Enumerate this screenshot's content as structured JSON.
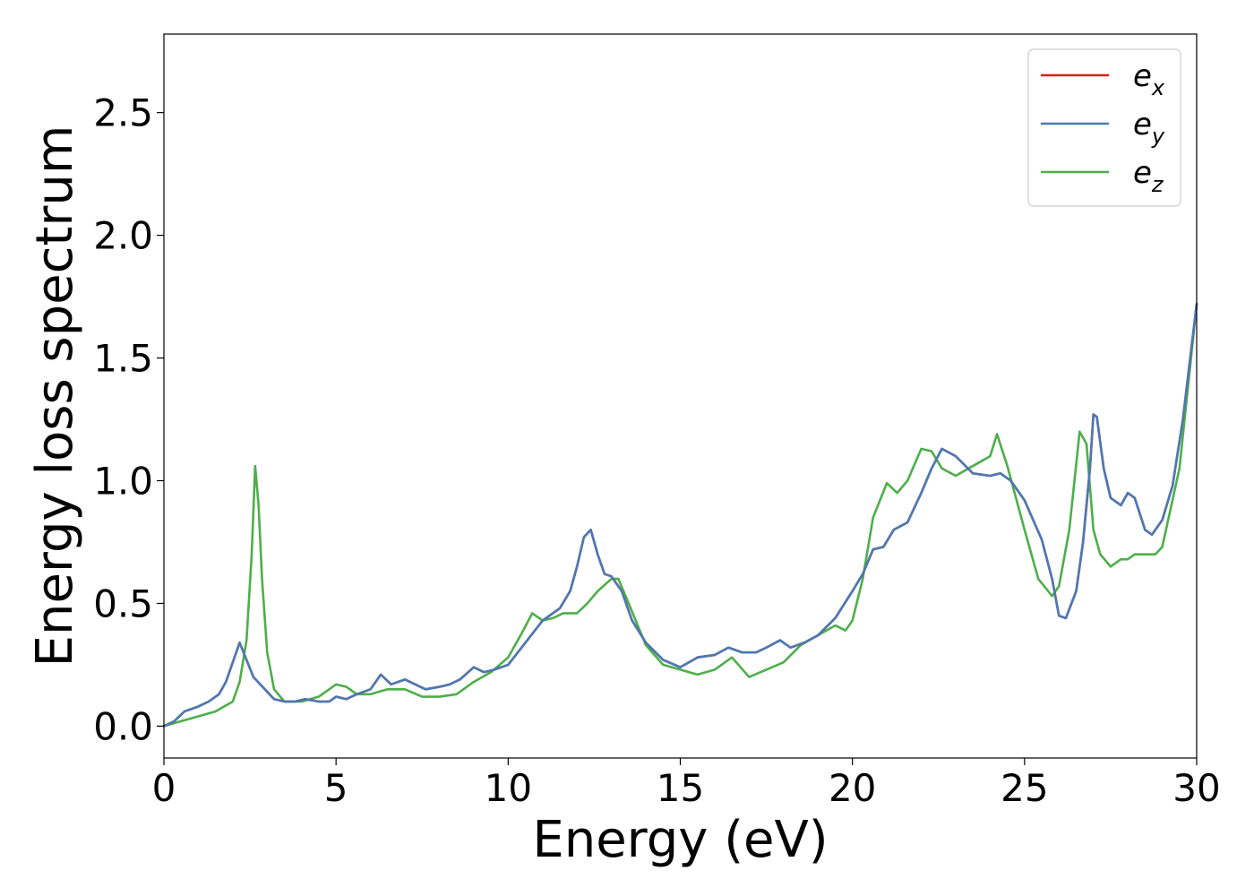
{
  "chart_data": {
    "type": "line",
    "title": "",
    "xlabel": "Energy (eV)",
    "ylabel": "Energy loss spectrum",
    "xlim": [
      0,
      30
    ],
    "ylim": [
      -0.13,
      2.82
    ],
    "xticks": [
      0,
      5,
      10,
      15,
      20,
      25,
      30
    ],
    "xtick_labels": [
      "0",
      "5",
      "10",
      "15",
      "20",
      "25",
      "30"
    ],
    "yticks": [
      0.0,
      0.5,
      1.0,
      1.5,
      2.0,
      2.5
    ],
    "ytick_labels": [
      "0.0",
      "0.5",
      "1.0",
      "1.5",
      "2.0",
      "2.5"
    ],
    "grid": false,
    "legend_position": "top-right",
    "series": [
      {
        "name": "e_x",
        "label_main": "e",
        "label_sub": "x",
        "color": "#e41a1c",
        "x": [
          0.0,
          0.3,
          0.6,
          0.8,
          1.0,
          1.3,
          1.6,
          1.8,
          2.0,
          2.2,
          2.4,
          2.6,
          2.8,
          3.0,
          3.2,
          3.5,
          3.8,
          4.1,
          4.5,
          4.8,
          5.0,
          5.3,
          5.6,
          6.0,
          6.3,
          6.6,
          7.0,
          7.3,
          7.6,
          8.0,
          8.3,
          8.6,
          9.0,
          9.3,
          9.6,
          10.0,
          10.5,
          11.0,
          11.5,
          11.8,
          12.0,
          12.2,
          12.4,
          12.6,
          12.8,
          13.0,
          13.3,
          13.6,
          14.0,
          14.5,
          15.0,
          15.5,
          16.0,
          16.4,
          16.8,
          17.2,
          17.5,
          17.9,
          18.2,
          18.6,
          19.0,
          19.5,
          20.0,
          20.3,
          20.6,
          20.9,
          21.2,
          21.6,
          22.0,
          22.3,
          22.6,
          23.0,
          23.5,
          24.0,
          24.3,
          24.6,
          25.0,
          25.5,
          25.8,
          26.0,
          26.2,
          26.5,
          26.7,
          26.9,
          27.0,
          27.1,
          27.3,
          27.5,
          27.8,
          28.0,
          28.2,
          28.5,
          28.7,
          29.0,
          29.3,
          29.6,
          30.0
        ],
        "y": [
          0.0,
          0.02,
          0.06,
          0.07,
          0.08,
          0.1,
          0.13,
          0.18,
          0.26,
          0.34,
          0.27,
          0.2,
          0.17,
          0.14,
          0.11,
          0.1,
          0.1,
          0.11,
          0.1,
          0.1,
          0.12,
          0.11,
          0.13,
          0.15,
          0.21,
          0.17,
          0.19,
          0.17,
          0.15,
          0.16,
          0.17,
          0.19,
          0.24,
          0.22,
          0.23,
          0.25,
          0.34,
          0.43,
          0.48,
          0.55,
          0.65,
          0.77,
          0.8,
          0.7,
          0.62,
          0.61,
          0.55,
          0.43,
          0.34,
          0.27,
          0.24,
          0.28,
          0.29,
          0.32,
          0.3,
          0.3,
          0.32,
          0.35,
          0.32,
          0.34,
          0.37,
          0.44,
          0.55,
          0.62,
          0.72,
          0.73,
          0.8,
          0.83,
          0.95,
          1.05,
          1.13,
          1.1,
          1.03,
          1.02,
          1.03,
          1.0,
          0.92,
          0.76,
          0.6,
          0.45,
          0.44,
          0.55,
          0.75,
          1.05,
          1.27,
          1.26,
          1.05,
          0.93,
          0.9,
          0.95,
          0.93,
          0.8,
          0.78,
          0.84,
          0.98,
          1.25,
          1.72
        ]
      },
      {
        "name": "e_y",
        "label_main": "e",
        "label_sub": "y",
        "color": "#4a7ab4",
        "x": [
          0.0,
          0.3,
          0.6,
          0.8,
          1.0,
          1.3,
          1.6,
          1.8,
          2.0,
          2.2,
          2.4,
          2.6,
          2.8,
          3.0,
          3.2,
          3.5,
          3.8,
          4.1,
          4.5,
          4.8,
          5.0,
          5.3,
          5.6,
          6.0,
          6.3,
          6.6,
          7.0,
          7.3,
          7.6,
          8.0,
          8.3,
          8.6,
          9.0,
          9.3,
          9.6,
          10.0,
          10.5,
          11.0,
          11.5,
          11.8,
          12.0,
          12.2,
          12.4,
          12.6,
          12.8,
          13.0,
          13.3,
          13.6,
          14.0,
          14.5,
          15.0,
          15.5,
          16.0,
          16.4,
          16.8,
          17.2,
          17.5,
          17.9,
          18.2,
          18.6,
          19.0,
          19.5,
          20.0,
          20.3,
          20.6,
          20.9,
          21.2,
          21.6,
          22.0,
          22.3,
          22.6,
          23.0,
          23.5,
          24.0,
          24.3,
          24.6,
          25.0,
          25.5,
          25.8,
          26.0,
          26.2,
          26.5,
          26.7,
          26.9,
          27.0,
          27.1,
          27.3,
          27.5,
          27.8,
          28.0,
          28.2,
          28.5,
          28.7,
          29.0,
          29.3,
          29.6,
          30.0
        ],
        "y": [
          0.0,
          0.02,
          0.06,
          0.07,
          0.08,
          0.1,
          0.13,
          0.18,
          0.26,
          0.34,
          0.27,
          0.2,
          0.17,
          0.14,
          0.11,
          0.1,
          0.1,
          0.11,
          0.1,
          0.1,
          0.12,
          0.11,
          0.13,
          0.15,
          0.21,
          0.17,
          0.19,
          0.17,
          0.15,
          0.16,
          0.17,
          0.19,
          0.24,
          0.22,
          0.23,
          0.25,
          0.34,
          0.43,
          0.48,
          0.55,
          0.65,
          0.77,
          0.8,
          0.7,
          0.62,
          0.61,
          0.55,
          0.43,
          0.34,
          0.27,
          0.24,
          0.28,
          0.29,
          0.32,
          0.3,
          0.3,
          0.32,
          0.35,
          0.32,
          0.34,
          0.37,
          0.44,
          0.55,
          0.62,
          0.72,
          0.73,
          0.8,
          0.83,
          0.95,
          1.05,
          1.13,
          1.1,
          1.03,
          1.02,
          1.03,
          1.0,
          0.92,
          0.76,
          0.6,
          0.45,
          0.44,
          0.55,
          0.75,
          1.05,
          1.27,
          1.26,
          1.05,
          0.93,
          0.9,
          0.95,
          0.93,
          0.8,
          0.78,
          0.84,
          0.98,
          1.25,
          1.72
        ]
      },
      {
        "name": "e_z",
        "label_main": "e",
        "label_sub": "z",
        "color": "#4daf4a",
        "x": [
          0.0,
          0.5,
          1.0,
          1.5,
          2.0,
          2.2,
          2.4,
          2.55,
          2.65,
          2.75,
          2.85,
          3.0,
          3.2,
          3.5,
          4.0,
          4.5,
          5.0,
          5.3,
          5.6,
          6.0,
          6.5,
          7.0,
          7.5,
          8.0,
          8.5,
          9.0,
          9.5,
          10.0,
          10.4,
          10.7,
          11.0,
          11.3,
          11.6,
          12.0,
          12.3,
          12.6,
          13.0,
          13.2,
          13.5,
          14.0,
          14.5,
          15.0,
          15.5,
          16.0,
          16.5,
          17.0,
          17.5,
          18.0,
          18.5,
          19.0,
          19.5,
          19.8,
          20.0,
          20.3,
          20.6,
          21.0,
          21.3,
          21.6,
          22.0,
          22.3,
          22.6,
          23.0,
          23.5,
          24.0,
          24.2,
          24.5,
          25.0,
          25.4,
          25.8,
          26.0,
          26.3,
          26.6,
          26.8,
          27.0,
          27.2,
          27.5,
          27.8,
          28.0,
          28.2,
          28.5,
          28.8,
          29.0,
          29.5,
          30.0
        ],
        "y": [
          0.0,
          0.02,
          0.04,
          0.06,
          0.1,
          0.18,
          0.35,
          0.7,
          1.06,
          0.9,
          0.6,
          0.3,
          0.15,
          0.1,
          0.1,
          0.12,
          0.17,
          0.16,
          0.13,
          0.13,
          0.15,
          0.15,
          0.12,
          0.12,
          0.13,
          0.18,
          0.22,
          0.28,
          0.38,
          0.46,
          0.43,
          0.44,
          0.46,
          0.46,
          0.5,
          0.55,
          0.6,
          0.6,
          0.5,
          0.33,
          0.25,
          0.23,
          0.21,
          0.23,
          0.28,
          0.2,
          0.23,
          0.26,
          0.33,
          0.37,
          0.41,
          0.39,
          0.43,
          0.6,
          0.85,
          0.99,
          0.95,
          1.0,
          1.13,
          1.12,
          1.05,
          1.02,
          1.06,
          1.1,
          1.19,
          1.06,
          0.8,
          0.6,
          0.53,
          0.57,
          0.8,
          1.2,
          1.15,
          0.8,
          0.7,
          0.65,
          0.68,
          0.68,
          0.7,
          0.7,
          0.7,
          0.73,
          1.05,
          1.72
        ]
      }
    ]
  }
}
